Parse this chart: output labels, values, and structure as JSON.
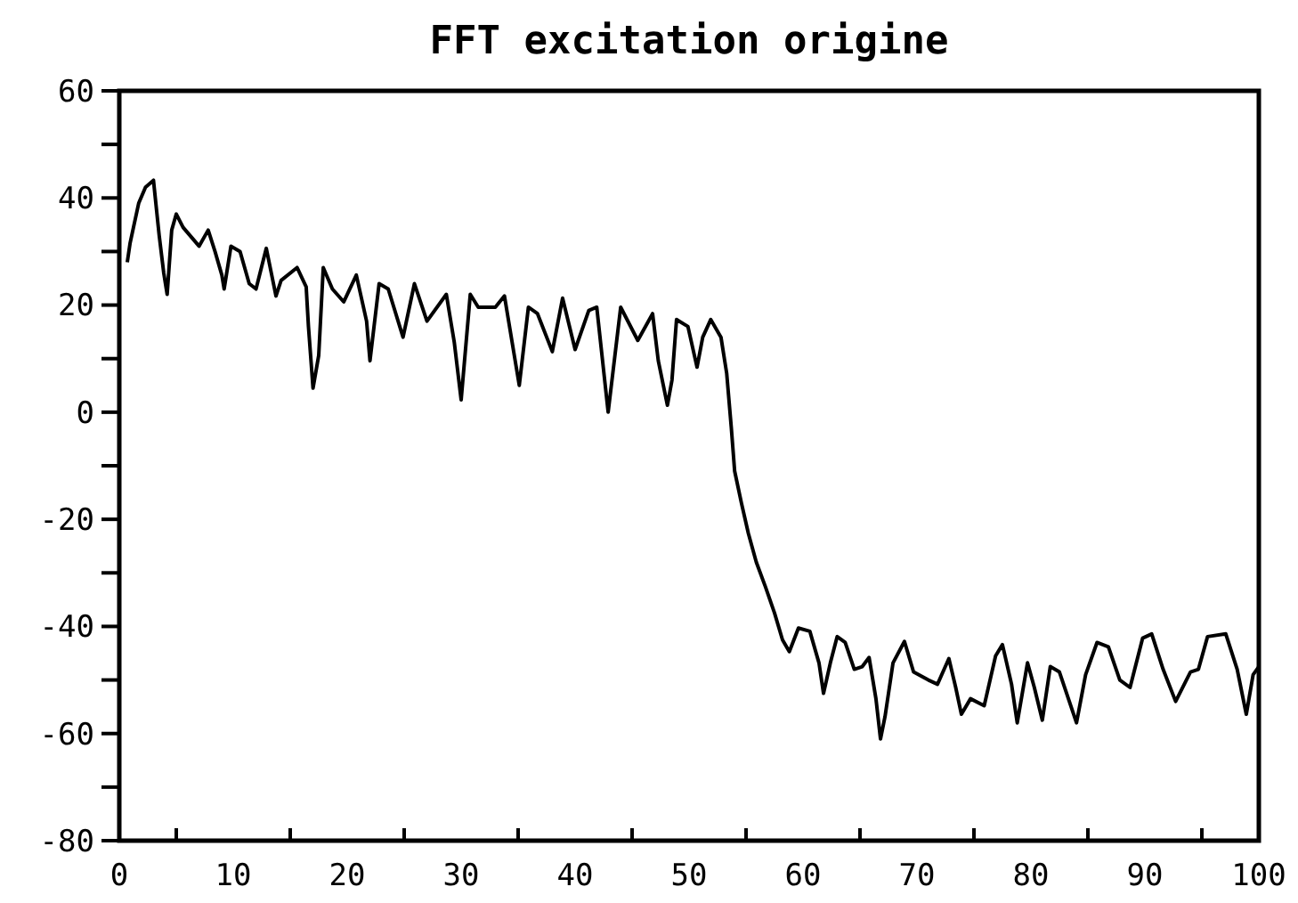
{
  "chart_data": {
    "type": "line",
    "title": "FFT excitation origine",
    "xlim": [
      0,
      100
    ],
    "ylim": [
      -80,
      60
    ],
    "xticks": [
      0,
      {
        "value": 5,
        "label": null
      },
      10,
      {
        "value": 15,
        "label": null
      },
      20,
      {
        "value": 25,
        "label": null
      },
      30,
      {
        "value": 35,
        "label": null
      },
      40,
      {
        "value": 45,
        "label": null
      },
      50,
      {
        "value": 55,
        "label": null
      },
      60,
      {
        "value": 65,
        "label": null
      },
      70,
      {
        "value": 75,
        "label": null
      },
      80,
      {
        "value": 85,
        "label": null
      },
      90,
      {
        "value": 95,
        "label": null
      },
      100
    ],
    "yticks": [
      -80,
      {
        "value": -70,
        "label": null
      },
      -60,
      {
        "value": -50,
        "label": null
      },
      -40,
      {
        "value": -30,
        "label": null
      },
      -20,
      {
        "value": -10,
        "label": null
      },
      0,
      {
        "value": 10,
        "label": null
      },
      20,
      {
        "value": 30,
        "label": null
      },
      40,
      {
        "value": 50,
        "label": null
      },
      60
    ],
    "grid": false,
    "marker": "none",
    "line_style": "solid",
    "series": [
      {
        "color": "#000000",
        "x": [
          0.7,
          0.95,
          1.7,
          2.3,
          3,
          3.5,
          3.9,
          4.2,
          4.6,
          5,
          5.6,
          7,
          7.8,
          8.4,
          9,
          9.2,
          9.8,
          10.6,
          11.4,
          12,
          12.9,
          13.75,
          14.2,
          15.6,
          16.4,
          16.6,
          17,
          17.5,
          17.9,
          18.7,
          19.7,
          20.8,
          21.7,
          22,
          22.8,
          23.6,
          24.9,
          25.9,
          27,
          28.7,
          29.4,
          30,
          30.8,
          31.5,
          33,
          33.8,
          35.1,
          35.9,
          36.7,
          38,
          38.9,
          40,
          41.2,
          41.9,
          42.9,
          44,
          45.5,
          46.8,
          47.3,
          48.1,
          48.5,
          48.9,
          49.9,
          50.7,
          51.2,
          51.9,
          52.8,
          53.3,
          53.7,
          54,
          54.6,
          55.2,
          55.9,
          56.7,
          57.5,
          58.2,
          58.8,
          59.6,
          60.6,
          61.4,
          61.8,
          62.4,
          63,
          63.7,
          64.5,
          65.2,
          65.8,
          66.4,
          66.8,
          67.2,
          67.9,
          68.9,
          69.7,
          71,
          71.8,
          72.8,
          73.4,
          73.9,
          74.7,
          75.9,
          76.9,
          77.5,
          78.3,
          78.8,
          79.7,
          80.3,
          81,
          81.7,
          82.5,
          84,
          84.8,
          85.8,
          86.8,
          87.8,
          88.7,
          89.8,
          90.6,
          91.6,
          92.7,
          94,
          94.7,
          95.5,
          97.1,
          98.1,
          98.9,
          99.5,
          100
        ],
        "values": [
          28,
          31.6,
          39,
          42,
          43.3,
          33,
          26,
          22,
          34,
          37,
          34.5,
          31,
          34,
          30,
          25.6,
          23,
          31,
          30,
          24,
          23,
          30.6,
          21.7,
          24.6,
          27,
          23.4,
          16,
          4.5,
          10.6,
          27,
          23,
          20.6,
          25.6,
          17,
          9.6,
          24,
          23,
          14,
          24,
          17,
          22,
          13,
          2.3,
          22,
          19.6,
          19.6,
          21.7,
          5,
          19.6,
          18.4,
          11.3,
          21.3,
          11.7,
          19,
          19.6,
          0,
          19.6,
          13.4,
          18.4,
          9.6,
          1.3,
          6,
          17.3,
          16,
          8.4,
          14,
          17.3,
          14,
          7.3,
          -2.7,
          -11,
          -17,
          -22.6,
          -28,
          -32.6,
          -37.5,
          -42.5,
          -44.7,
          -40.3,
          -40.9,
          -46.8,
          -52.5,
          -46.8,
          -41.9,
          -43,
          -48,
          -47.5,
          -45.8,
          -53.5,
          -61,
          -56.8,
          -46.8,
          -42.8,
          -48.5,
          -50,
          -50.8,
          -46,
          -51.4,
          -56.4,
          -53.5,
          -54.8,
          -45.5,
          -43.4,
          -50.8,
          -58,
          -46.8,
          -51.4,
          -57.5,
          -47.5,
          -48.5,
          -58,
          -49,
          -43,
          -43.8,
          -50,
          -51.4,
          -42.2,
          -41.4,
          -48,
          -54,
          -48.5,
          -48,
          -41.9,
          -41.4,
          -48,
          -56.4,
          -49,
          -47.5
        ]
      }
    ]
  }
}
